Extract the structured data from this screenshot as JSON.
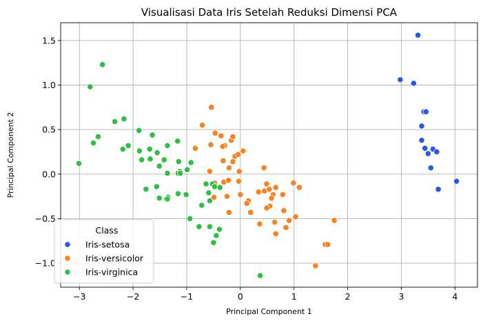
{
  "chart_data": {
    "type": "scatter",
    "title": "Visualisasi Data Iris Setelah Reduksi Dimensi PCA",
    "xlabel": "Principal Component 1",
    "ylabel": "Principal Component 2",
    "xlim": [
      -3.35,
      4.42
    ],
    "ylim": [
      -1.27,
      1.7
    ],
    "xticks": [
      -3,
      -2,
      -1,
      0,
      1,
      2,
      3,
      4
    ],
    "yticks": [
      -1.0,
      -0.5,
      0.0,
      0.5,
      1.0,
      1.5
    ],
    "xtick_labels": [
      "−3",
      "−2",
      "−1",
      "0",
      "1",
      "2",
      "3",
      "4"
    ],
    "ytick_labels": [
      "−1.0",
      "−0.5",
      "0.0",
      "0.5",
      "1.0",
      "1.5"
    ],
    "grid": true,
    "legend": {
      "title": "Class",
      "placement": "lower-left"
    },
    "series": [
      {
        "name": "Iris-setosa",
        "color": "#2a57e8",
        "points": [
          [
            3.31,
            1.56
          ],
          [
            2.98,
            1.06
          ],
          [
            3.23,
            1.02
          ],
          [
            3.42,
            0.7
          ],
          [
            3.46,
            0.7
          ],
          [
            3.38,
            0.54
          ],
          [
            3.38,
            0.38
          ],
          [
            3.44,
            0.29
          ],
          [
            3.5,
            0.23
          ],
          [
            3.59,
            0.28
          ],
          [
            3.66,
            0.25
          ],
          [
            3.55,
            0.07
          ],
          [
            3.69,
            -0.17
          ],
          [
            4.03,
            -0.08
          ]
        ]
      },
      {
        "name": "Iris-versicolor",
        "color": "#f98220",
        "points": [
          [
            -0.54,
            0.75
          ],
          [
            -0.71,
            0.55
          ],
          [
            -0.84,
            0.29
          ],
          [
            -0.55,
            0.33
          ],
          [
            -0.47,
            0.46
          ],
          [
            -0.36,
            0.43
          ],
          [
            -0.29,
            0.32
          ],
          [
            -0.33,
            0.31
          ],
          [
            -0.17,
            0.38
          ],
          [
            -0.14,
            0.42
          ],
          [
            -0.1,
            0.2
          ],
          [
            -0.04,
            0.22
          ],
          [
            0.05,
            0.26
          ],
          [
            -0.32,
            0.15
          ],
          [
            -0.14,
            0.14
          ],
          [
            -0.21,
            0.07
          ],
          [
            -0.57,
            0.03
          ],
          [
            -0.31,
            -0.09
          ],
          [
            -0.48,
            -0.1
          ],
          [
            -0.22,
            -0.07
          ],
          [
            -0.03,
            -0.08
          ],
          [
            -0.02,
            0.03
          ],
          [
            -0.49,
            -0.26
          ],
          [
            -0.25,
            -0.25
          ],
          [
            0.0,
            -0.23
          ],
          [
            0.15,
            -0.3
          ],
          [
            0.12,
            -0.33
          ],
          [
            0.34,
            -0.2
          ],
          [
            0.44,
            0.07
          ],
          [
            0.49,
            -0.11
          ],
          [
            0.45,
            -0.19
          ],
          [
            0.61,
            -0.23
          ],
          [
            0.66,
            -0.15
          ],
          [
            0.54,
            -0.17
          ],
          [
            0.79,
            -0.23
          ],
          [
            0.99,
            -0.1
          ],
          [
            1.1,
            -0.15
          ],
          [
            0.58,
            -0.27
          ],
          [
            0.55,
            -0.36
          ],
          [
            0.49,
            -0.38
          ],
          [
            0.81,
            -0.41
          ],
          [
            0.19,
            -0.43
          ],
          [
            -0.21,
            -0.43
          ],
          [
            0.36,
            -0.56
          ],
          [
            0.64,
            -0.54
          ],
          [
            0.85,
            -0.6
          ],
          [
            0.91,
            -0.52
          ],
          [
            1.03,
            -0.48
          ],
          [
            1.75,
            -0.52
          ],
          [
            0.66,
            -0.67
          ],
          [
            1.58,
            -0.79
          ],
          [
            1.63,
            -0.79
          ],
          [
            1.4,
            -1.03
          ]
        ]
      },
      {
        "name": "Iris-virginica",
        "color": "#2ebf45",
        "points": [
          [
            -2.57,
            1.23
          ],
          [
            -2.8,
            0.98
          ],
          [
            -2.17,
            0.62
          ],
          [
            -2.34,
            0.59
          ],
          [
            -2.65,
            0.42
          ],
          [
            -2.74,
            0.35
          ],
          [
            -3.01,
            0.12
          ],
          [
            -1.89,
            0.49
          ],
          [
            -1.64,
            0.44
          ],
          [
            -2.09,
            0.32
          ],
          [
            -2.19,
            0.28
          ],
          [
            -1.88,
            0.26
          ],
          [
            -1.69,
            0.28
          ],
          [
            -1.55,
            0.24
          ],
          [
            -1.42,
            0.16
          ],
          [
            -1.36,
            0.32
          ],
          [
            -1.17,
            0.37
          ],
          [
            -1.84,
            0.16
          ],
          [
            -1.68,
            0.17
          ],
          [
            -1.51,
            0.09
          ],
          [
            -1.36,
            0.01
          ],
          [
            -1.15,
            0.14
          ],
          [
            -1.13,
            0.03
          ],
          [
            -1.16,
            0.01
          ],
          [
            -1.12,
            0.01
          ],
          [
            -0.99,
            0.05
          ],
          [
            -0.92,
            0.13
          ],
          [
            -1.76,
            -0.17
          ],
          [
            -1.56,
            -0.14
          ],
          [
            -1.51,
            -0.27
          ],
          [
            -1.35,
            -0.26
          ],
          [
            -1.38,
            -0.28
          ],
          [
            -1.36,
            -0.28
          ],
          [
            -1.16,
            -0.22
          ],
          [
            -1.01,
            -0.23
          ],
          [
            -0.64,
            -0.11
          ],
          [
            -0.52,
            -0.11
          ],
          [
            -0.48,
            -0.14
          ],
          [
            -0.38,
            -0.15
          ],
          [
            -0.59,
            -0.21
          ],
          [
            -0.57,
            -0.3
          ],
          [
            -0.72,
            -0.35
          ],
          [
            -0.94,
            -0.5
          ],
          [
            -0.77,
            -0.59
          ],
          [
            -0.57,
            -0.59
          ],
          [
            -0.39,
            -0.62
          ],
          [
            -0.45,
            -0.69
          ],
          [
            -0.5,
            -0.77
          ],
          [
            0.37,
            -1.14
          ]
        ]
      }
    ]
  }
}
